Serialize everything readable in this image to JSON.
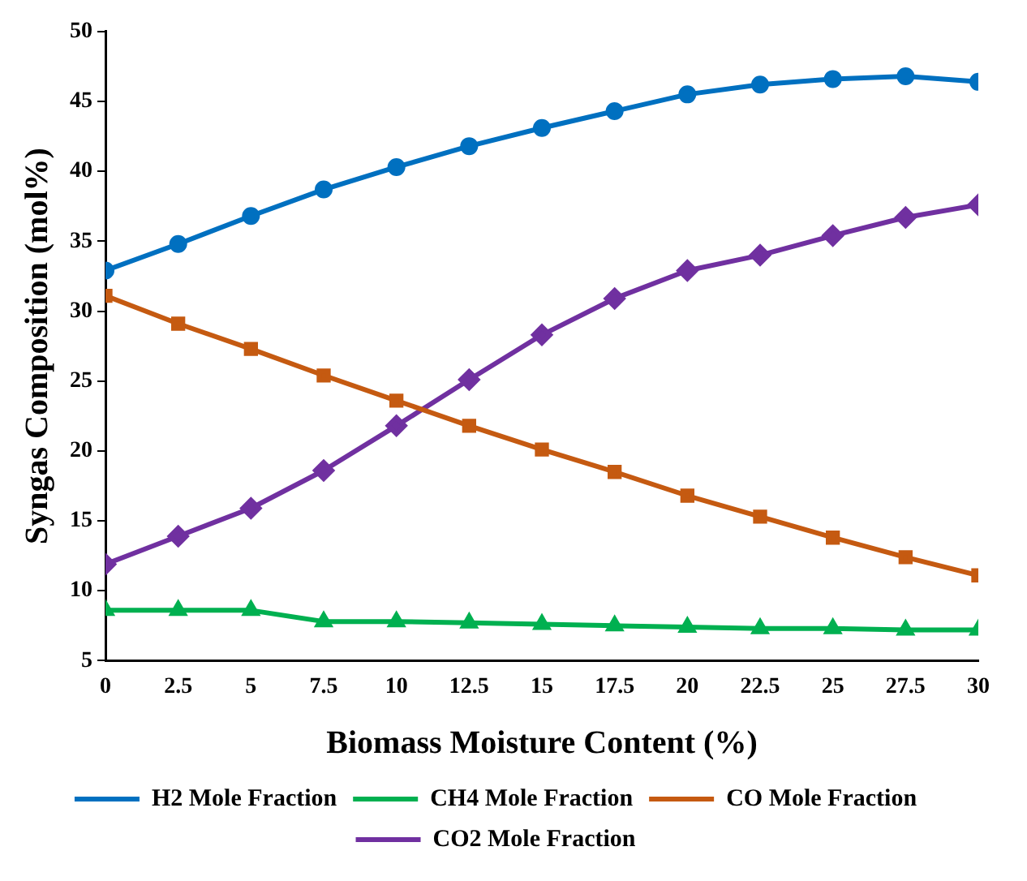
{
  "chart_data": {
    "type": "line",
    "xlabel": "Biomass Moisture Content (%)",
    "ylabel": "Syngas Composition (mol%)",
    "x": [
      0,
      2.5,
      5,
      7.5,
      10,
      12.5,
      15,
      17.5,
      20,
      22.5,
      25,
      27.5,
      30
    ],
    "xlim": [
      0,
      30
    ],
    "xticks": [
      0,
      2.5,
      5,
      7.5,
      10,
      12.5,
      15,
      17.5,
      20,
      22.5,
      25,
      27.5,
      30
    ],
    "ylim": [
      5,
      50
    ],
    "yticks": [
      5,
      10,
      15,
      20,
      25,
      30,
      35,
      40,
      45,
      50
    ],
    "grid": false,
    "legend": "bottom",
    "series": [
      {
        "name": "H2 Mole Fraction",
        "color": "#0070c0",
        "marker": "circle",
        "values": [
          32.9,
          34.8,
          36.8,
          38.7,
          40.3,
          41.8,
          43.1,
          44.3,
          45.5,
          46.2,
          46.6,
          46.8,
          46.4
        ]
      },
      {
        "name": "CO Mole Fraction",
        "color": "#c55a11",
        "marker": "square",
        "values": [
          31.1,
          29.1,
          27.3,
          25.4,
          23.6,
          21.8,
          20.1,
          18.5,
          16.8,
          15.3,
          13.8,
          12.4,
          11.1
        ]
      },
      {
        "name": "CH4 Mole Fraction",
        "color": "#00b050",
        "marker": "triangle",
        "values": [
          8.6,
          8.6,
          8.6,
          7.8,
          7.8,
          7.7,
          7.6,
          7.5,
          7.4,
          7.3,
          7.3,
          7.2,
          7.2
        ]
      },
      {
        "name": "CO2 Mole Fraction",
        "color": "#7030a0",
        "marker": "diamond",
        "values": [
          11.9,
          13.9,
          15.9,
          18.6,
          21.8,
          25.1,
          28.3,
          30.9,
          32.9,
          34.0,
          35.4,
          36.7,
          37.6
        ]
      }
    ]
  }
}
